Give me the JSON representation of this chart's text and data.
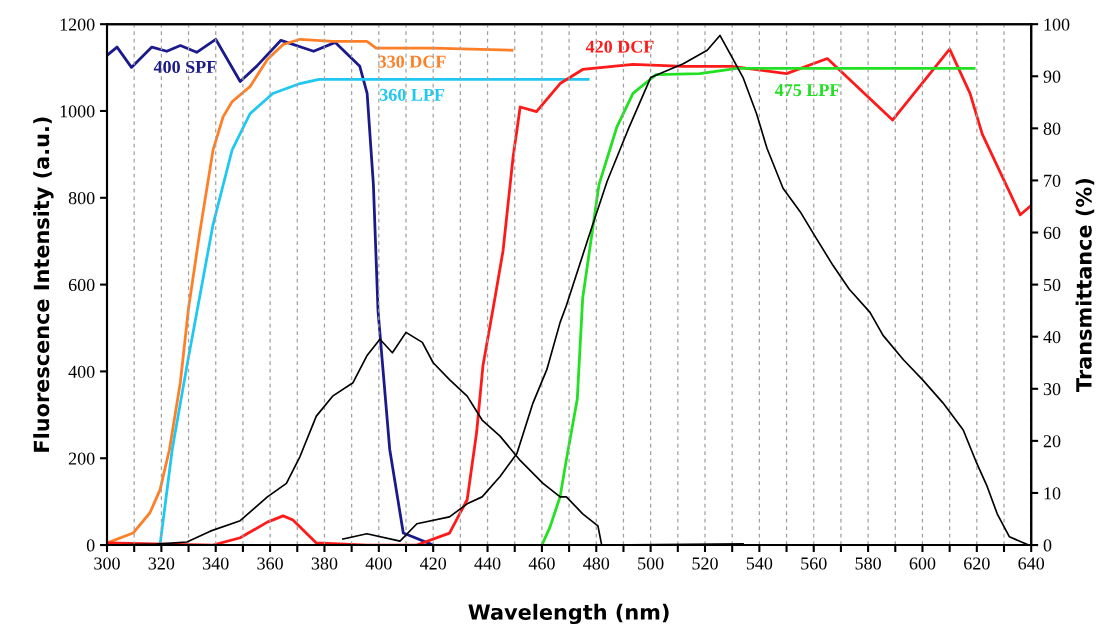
{
  "chart_data": {
    "type": "line",
    "xlabel": "Wavelength (nm)",
    "ylabel": "Fluorescence Intensity (a.u.)",
    "y2label": "Transmittance (%)",
    "xlim": [
      300,
      640
    ],
    "xticks": [
      300,
      {
        "value": 310,
        "label": null
      },
      320,
      {
        "value": 330,
        "label": null
      },
      340,
      {
        "value": 350,
        "label": null
      },
      360,
      {
        "value": 370,
        "label": null
      },
      380,
      {
        "value": 390,
        "label": null
      },
      400,
      {
        "value": 410,
        "label": null
      },
      420,
      {
        "value": 430,
        "label": null
      },
      440,
      {
        "value": 450,
        "label": null
      },
      460,
      {
        "value": 470,
        "label": null
      },
      480,
      {
        "value": 490,
        "label": null
      },
      500,
      {
        "value": 510,
        "label": null
      },
      520,
      {
        "value": 530,
        "label": null
      },
      540,
      {
        "value": 550,
        "label": null
      },
      560,
      {
        "value": 570,
        "label": null
      },
      580,
      {
        "value": 590,
        "label": null
      },
      600,
      {
        "value": 610,
        "label": null
      },
      620,
      {
        "value": 630,
        "label": null
      },
      640
    ],
    "ylim": [
      0,
      1200
    ],
    "yticks": [
      0,
      200,
      400,
      600,
      800,
      1000,
      1200
    ],
    "y2lim": [
      0,
      100
    ],
    "y2ticks": [
      0,
      10,
      20,
      30,
      40,
      50,
      60,
      70,
      80,
      90,
      100
    ],
    "grid": "x",
    "legend": false,
    "marker": "none",
    "line_style": "solid",
    "series": [
      {
        "name": "400 SPF",
        "color": "#1a1a8c",
        "axis": "y2",
        "x": [
          300,
          303.7,
          309,
          316.5,
          322,
          327,
          333,
          340,
          349,
          355,
          364,
          376,
          384,
          393,
          395.7,
          398,
          399.7,
          404,
          409,
          420
        ],
        "values": [
          94.0,
          95.6,
          91.7,
          95.6,
          94.8,
          95.9,
          94.6,
          97.1,
          89.0,
          91.9,
          96.9,
          94.8,
          96.5,
          91.9,
          86.7,
          69.2,
          45,
          18.4,
          2.3,
          0
        ]
      },
      {
        "name": "330 DCF",
        "color": "#ff7f27",
        "axis": "y2",
        "x": [
          300,
          309.6,
          315.8,
          319.5,
          323,
          327,
          330,
          334,
          339,
          342.7,
          346,
          352.6,
          359,
          364.8,
          371,
          383,
          395.6,
          399,
          420,
          449
        ],
        "values": [
          0.4,
          2.3,
          6.2,
          10.6,
          18.4,
          31.3,
          45.5,
          59.6,
          75.8,
          82.2,
          85.1,
          88.0,
          93.2,
          96.1,
          97.1,
          96.7,
          96.7,
          95.4,
          95.4,
          95.0
        ]
      },
      {
        "name": "360 LPF",
        "color": "#1ec8f0",
        "axis": "y2",
        "x": [
          319.5,
          324,
          329.4,
          334,
          339,
          346,
          352.6,
          361,
          371,
          378,
          477
        ],
        "values": [
          0,
          18.4,
          34.4,
          47.4,
          61.5,
          75.8,
          82.8,
          86.7,
          88.6,
          89.4,
          89.4
        ]
      },
      {
        "name": "420 DCF",
        "color": "#ff1a1a",
        "axis": "y2",
        "x": [
          300,
          339,
          349,
          359,
          364.8,
          368.4,
          377,
          395.6,
          414,
          426,
          432.5,
          436,
          438.3,
          442.7,
          445.7,
          449.4,
          452,
          458,
          466.7,
          475,
          493.5,
          512,
          530,
          550,
          565,
          589,
          610,
          617.5,
          622,
          636,
          640
        ],
        "values": [
          0.4,
          0,
          1.4,
          4.4,
          5.6,
          4.8,
          0.4,
          0,
          0,
          2.3,
          8.7,
          21.7,
          34.4,
          47.4,
          56.5,
          74.5,
          84.1,
          83.2,
          88.6,
          91.3,
          92.3,
          91.9,
          91.9,
          90.5,
          93.4,
          81.6,
          95.2,
          86.7,
          78.9,
          63.4,
          65.2
        ]
      },
      {
        "name": "475 LPF",
        "color": "#22e022",
        "axis": "y2",
        "x": [
          460,
          463,
          466.7,
          469,
          473,
          475,
          481,
          487.6,
          493.5,
          502,
          518,
          531.8,
          619
        ],
        "values": [
          0,
          3.5,
          9.3,
          16.4,
          28.0,
          47.4,
          69.2,
          80.3,
          86.7,
          90.3,
          90.5,
          91.5,
          91.5
        ]
      },
      {
        "color": "#000000",
        "x": [
          300,
          318,
          329.4,
          338,
          349,
          359,
          366,
          371,
          377,
          383,
          390.5,
          395.6,
          400.4,
          405,
          410,
          416,
          420,
          426,
          432.5,
          438,
          444.6,
          452,
          460.4,
          466.7,
          469,
          475,
          480.6,
          482,
          534
        ],
        "values": [
          0,
          2,
          7,
          32,
          56,
          111,
          142,
          204,
          297,
          343,
          374,
          436,
          474,
          443,
          490,
          467,
          420,
          381,
          343,
          288,
          251,
          195,
          142,
          111,
          111,
          72,
          44,
          0,
          3
        ]
      },
      {
        "color": "#000000",
        "x": [
          386.8,
          395.6,
          407.8,
          414,
          426,
          432.5,
          438,
          444.6,
          450.8,
          456.7,
          461.8,
          466.7,
          469,
          477,
          484,
          491.5,
          500,
          512,
          520.8,
          525.5,
          530,
          534,
          539,
          542.8,
          548.7,
          555,
          561,
          567,
          573,
          580.7,
          585.5,
          593,
          600,
          607.6,
          615,
          620,
          623.8,
          627.5,
          632,
          639
        ],
        "values": [
          14,
          26,
          9,
          49,
          65,
          95,
          111,
          158,
          211,
          327,
          404,
          513,
          552,
          706,
          838,
          954,
          1077,
          1109,
          1140,
          1174,
          1123,
          1077,
          993,
          914,
          822,
          768,
          706,
          645,
          590,
          536,
          483,
          427,
          381,
          327,
          265,
          188,
          135,
          72,
          19,
          0
        ]
      }
    ]
  }
}
